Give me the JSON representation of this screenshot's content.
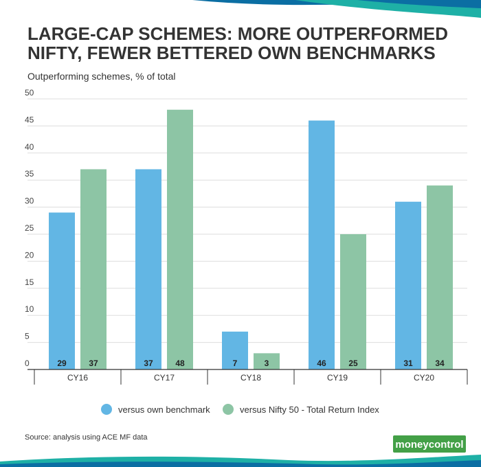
{
  "header": {
    "title_line1": "LARGE-CAP SCHEMES: MORE OUTPERFORMED",
    "title_line2": "NIFTY, FEWER BETTERED OWN BENCHMARKS"
  },
  "chart_data": {
    "type": "bar",
    "title": "LARGE-CAP SCHEMES: MORE OUTPERFORMED NIFTY, FEWER BETTERED OWN BENCHMARKS",
    "subtitle": "Outperforming schemes, % of total",
    "xlabel": "",
    "ylabel": "",
    "categories": [
      "CY16",
      "CY17",
      "CY18",
      "CY19",
      "CY20"
    ],
    "series": [
      {
        "name": "versus own benchmark",
        "color": "#62b6e4",
        "values": [
          29,
          37,
          7,
          46,
          31
        ]
      },
      {
        "name": "versus Nifty 50 - Total Return Index",
        "color": "#8dc5a5",
        "values": [
          37,
          48,
          3,
          25,
          34
        ]
      }
    ],
    "ylim": [
      0,
      50
    ],
    "yticks": [
      0,
      5,
      10,
      15,
      20,
      25,
      30,
      35,
      40,
      45,
      50
    ],
    "grid": true,
    "legend_position": "bottom"
  },
  "footer": {
    "source": "Source: analysis using ACE MF data",
    "logo_part1": "money",
    "logo_part2": "control"
  },
  "colors": {
    "accent_teal": "#1eb0a6",
    "accent_blue": "#0b6ea3",
    "logo_green": "#43a047"
  }
}
